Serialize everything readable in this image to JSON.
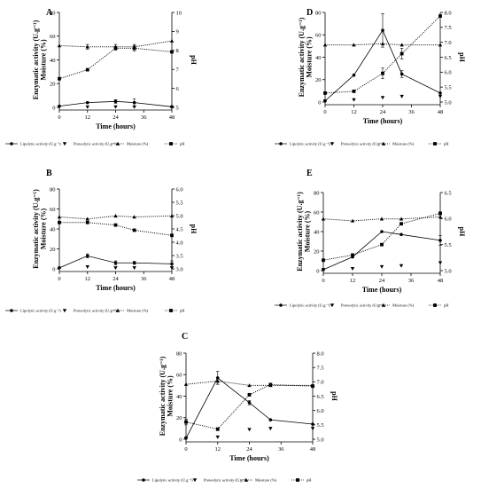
{
  "chart_data": [
    {
      "type": "line",
      "panel_label": "A",
      "xlabel": "Time (hours)",
      "ylabel": "Enzymatic activity (U.g⁻¹)\nMoisture (%)",
      "y2label": "pH",
      "x_ticks": [
        "0",
        "12",
        "24",
        "36",
        "48"
      ],
      "y_ticks": [
        "0",
        "20",
        "40",
        "60",
        "80"
      ],
      "y2_ticks": [
        "5",
        "6",
        "7",
        "8",
        "9",
        "10"
      ],
      "xlim": [
        0,
        48
      ],
      "ylim": [
        0,
        80
      ],
      "y2lim": [
        4.7,
        10
      ],
      "series": [
        {
          "name": "Lipolytic activity (U.g⁻¹)",
          "axis": "left",
          "style": "solid",
          "marker": "circle",
          "x": [
            0,
            12,
            24,
            32,
            48
          ],
          "y": [
            1,
            4,
            5,
            4,
            0.5
          ],
          "err": [
            0,
            0.5,
            1.5,
            3,
            0.5
          ]
        },
        {
          "name": "Proteolytic activity (U.g⁻¹)",
          "axis": "left",
          "style": "none",
          "marker": "triangle-down",
          "x": [
            0,
            12,
            24,
            32,
            48
          ],
          "y": [
            0.3,
            0.3,
            0.4,
            0.3,
            0.2
          ],
          "err": [
            0,
            0,
            0,
            0,
            0
          ]
        },
        {
          "name": "Moisture (%)",
          "axis": "left",
          "style": "dotted",
          "marker": "triangle-up",
          "x": [
            0,
            12,
            24,
            32,
            48
          ],
          "y": [
            52,
            51,
            51,
            51,
            56
          ],
          "err": [
            0,
            2,
            2,
            2,
            0
          ]
        },
        {
          "name": "pH",
          "axis": "right",
          "style": "dotted",
          "marker": "square",
          "x": [
            0,
            12,
            24,
            32,
            48
          ],
          "y": [
            6.3,
            6.8,
            8.0,
            8.0,
            7.8
          ],
          "err": [
            0,
            0.05,
            0.1,
            0.15,
            0.05
          ]
        }
      ]
    },
    {
      "type": "line",
      "panel_label": "D",
      "xlabel": "Time (hours)",
      "ylabel": "Enzymatic activity (U.g⁻¹)\nMoisture (%)",
      "y2label": "pH",
      "x_ticks": [
        "0",
        "12",
        "24",
        "36",
        "48"
      ],
      "y_ticks": [
        "0",
        "20",
        "40",
        "60",
        "80"
      ],
      "y2_ticks": [
        "5.0",
        "5.5",
        "6.0",
        "6.5",
        "7.0",
        "7.5",
        "8.0"
      ],
      "xlim": [
        0,
        48
      ],
      "ylim": [
        0,
        80
      ],
      "y2lim": [
        5.3,
        7.8
      ],
      "series": [
        {
          "name": "Lipolytic activity (U.g⁻¹)",
          "axis": "left",
          "style": "solid",
          "marker": "circle",
          "x": [
            0,
            12,
            24,
            32,
            48
          ],
          "y": [
            1,
            24,
            64,
            25,
            8
          ],
          "err": [
            0,
            0,
            15,
            3,
            0
          ]
        },
        {
          "name": "Proteolytic activity (U.g⁻¹)",
          "axis": "left",
          "style": "none",
          "marker": "triangle-down",
          "x": [
            0,
            12,
            24,
            32,
            48
          ],
          "y": [
            1,
            2,
            4,
            5,
            5
          ],
          "err": [
            0,
            0,
            0,
            0,
            0
          ]
        },
        {
          "name": "Moisture (%)",
          "axis": "left",
          "style": "dotted",
          "marker": "triangle-up",
          "x": [
            0,
            12,
            24,
            32,
            48
          ],
          "y": [
            51,
            51,
            52,
            51,
            51
          ],
          "err": [
            0,
            0,
            0,
            0,
            0
          ]
        },
        {
          "name": "pH",
          "axis": "right",
          "style": "dotted",
          "marker": "square",
          "x": [
            0,
            12,
            24,
            32,
            48
          ],
          "y": [
            5.55,
            5.6,
            6.1,
            6.65,
            7.7
          ],
          "err": [
            0,
            0,
            0.15,
            0.15,
            0
          ]
        }
      ]
    },
    {
      "type": "line",
      "panel_label": "B",
      "xlabel": "Time (hours)",
      "ylabel": "Enzymatic activity (U.g⁻¹)\nMoisture (%)",
      "y2label": "pH",
      "x_ticks": [
        "0",
        "12",
        "24",
        "36",
        "48"
      ],
      "y_ticks": [
        "0",
        "20",
        "40",
        "60",
        "80"
      ],
      "y2_ticks": [
        "3.0",
        "3.5",
        "4.0",
        "4.5",
        "5.0",
        "5.5",
        "6.0"
      ],
      "xlim": [
        0,
        48
      ],
      "ylim": [
        0,
        80
      ],
      "y2lim": [
        2.9,
        6.0
      ],
      "series": [
        {
          "name": "Lipolytic activity (U.g⁻¹)",
          "axis": "left",
          "style": "solid",
          "marker": "circle",
          "x": [
            0,
            12,
            24,
            32,
            48
          ],
          "y": [
            1,
            13,
            6,
            6,
            5
          ],
          "err": [
            0,
            2,
            2,
            1.5,
            3
          ]
        },
        {
          "name": "Proteolytic activity (U.g⁻¹)",
          "axis": "left",
          "style": "none",
          "marker": "triangle-down",
          "x": [
            0,
            12,
            24,
            32,
            48
          ],
          "y": [
            0.5,
            2,
            1,
            1,
            1
          ],
          "err": [
            0,
            0,
            0,
            0,
            0
          ]
        },
        {
          "name": "Moisture (%)",
          "axis": "left",
          "style": "dotted",
          "marker": "triangle-up",
          "x": [
            0,
            12,
            24,
            32,
            48
          ],
          "y": [
            52,
            50,
            53,
            52,
            53
          ],
          "err": [
            0,
            0,
            0,
            0,
            0
          ]
        },
        {
          "name": "pH",
          "axis": "right",
          "style": "dotted",
          "marker": "square",
          "x": [
            0,
            12,
            24,
            32,
            48
          ],
          "y": [
            4.7,
            4.7,
            4.6,
            4.4,
            4.2
          ],
          "err": [
            0,
            0,
            0,
            0,
            0
          ]
        }
      ]
    },
    {
      "type": "line",
      "panel_label": "E",
      "xlabel": "Time (hours)",
      "ylabel": "Enzymatic activity (U.g⁻¹)\nMoisture (%)",
      "y2label": "pH",
      "x_ticks": [
        "0",
        "12",
        "24",
        "36",
        "48"
      ],
      "y_ticks": [
        "0",
        "20",
        "40",
        "60",
        "80"
      ],
      "y2_ticks": [
        "5.0",
        "5.5",
        "6.0",
        "6.5"
      ],
      "xlim": [
        0,
        48
      ],
      "ylim": [
        0,
        80
      ],
      "y2lim": [
        5.0,
        6.5
      ],
      "series": [
        {
          "name": "Lipolytic activity (U.g⁻¹)",
          "axis": "left",
          "style": "solid",
          "marker": "circle",
          "x": [
            0,
            12,
            24,
            32,
            48
          ],
          "y": [
            1,
            14,
            40,
            37,
            31
          ],
          "err": [
            0,
            0,
            0,
            0,
            5
          ]
        },
        {
          "name": "Proteolytic activity (U.g⁻¹)",
          "axis": "left",
          "style": "none",
          "marker": "triangle-down",
          "x": [
            0,
            12,
            24,
            32,
            48
          ],
          "y": [
            1,
            2,
            4,
            5,
            8
          ],
          "err": [
            0,
            0,
            0,
            0,
            0
          ]
        },
        {
          "name": "Moisture (%)",
          "axis": "left",
          "style": "dotted",
          "marker": "triangle-up",
          "x": [
            0,
            12,
            24,
            32,
            48
          ],
          "y": [
            53,
            51,
            53,
            53,
            55
          ],
          "err": [
            0,
            0,
            0,
            0,
            0
          ]
        },
        {
          "name": "pH",
          "axis": "right",
          "style": "dotted",
          "marker": "square",
          "x": [
            0,
            12,
            24,
            32,
            48
          ],
          "y": [
            5.2,
            5.3,
            5.5,
            5.9,
            6.1
          ],
          "err": [
            0,
            0,
            0,
            0.02,
            0.03
          ]
        }
      ]
    },
    {
      "type": "line",
      "panel_label": "C",
      "xlabel": "Time (hours)",
      "ylabel": "Enzymatic activity (U.g⁻¹)\nMoisture (%)",
      "y2label": "pH",
      "x_ticks": [
        "0",
        "12",
        "24",
        "36",
        "48"
      ],
      "y_ticks": [
        "0",
        "20",
        "40",
        "60",
        "80"
      ],
      "y2_ticks": [
        "5.0",
        "5.5",
        "6.0",
        "6.5",
        "7.0",
        "7.5",
        "8.0"
      ],
      "xlim": [
        0,
        48
      ],
      "ylim": [
        0,
        80
      ],
      "y2lim": [
        5.0,
        8.0
      ],
      "series": [
        {
          "name": "Lipolytic activity (U.g⁻¹)",
          "axis": "left",
          "style": "solid",
          "marker": "circle",
          "x": [
            0,
            12,
            24,
            32,
            48
          ],
          "y": [
            1,
            57,
            34,
            18,
            14
          ],
          "err": [
            0,
            6,
            2,
            0,
            0
          ]
        },
        {
          "name": "Proteolytic activity (U.g⁻¹)",
          "axis": "left",
          "style": "none",
          "marker": "triangle-down",
          "x": [
            0,
            12,
            24,
            32,
            48
          ],
          "y": [
            1,
            2,
            9,
            10,
            10
          ],
          "err": [
            0,
            0,
            0,
            0,
            0
          ]
        },
        {
          "name": "Moisture (%)",
          "axis": "left",
          "style": "dotted",
          "marker": "triangle-up",
          "x": [
            0,
            12,
            24,
            32,
            48
          ],
          "y": [
            51,
            54,
            50,
            50,
            50
          ],
          "err": [
            0,
            3,
            0,
            0,
            0
          ]
        },
        {
          "name": "pH",
          "axis": "right",
          "style": "dotted",
          "marker": "square",
          "x": [
            0,
            12,
            24,
            32,
            48
          ],
          "y": [
            5.6,
            5.35,
            6.55,
            6.9,
            6.85
          ],
          "err": [
            0.1,
            0.05,
            0.05,
            0.05,
            0.05
          ]
        }
      ]
    }
  ]
}
